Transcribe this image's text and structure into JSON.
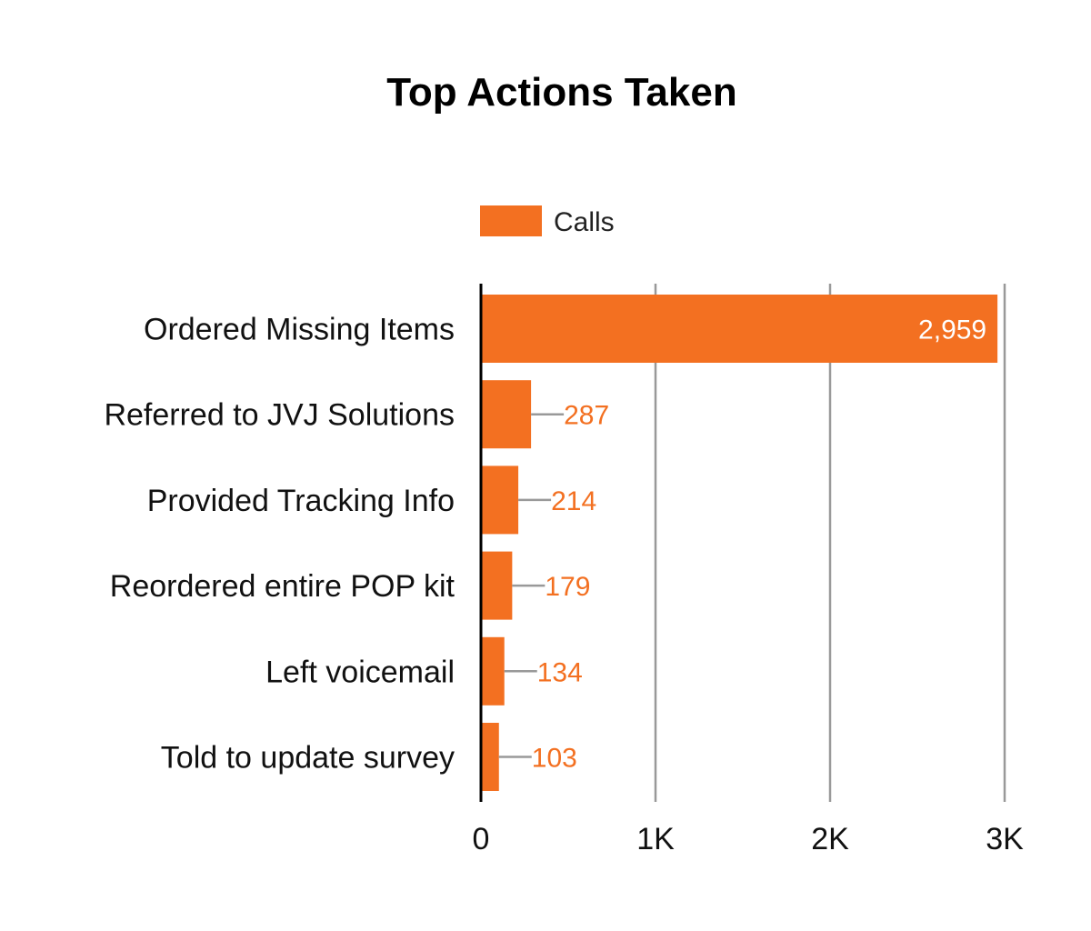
{
  "chart_data": {
    "type": "bar",
    "orientation": "horizontal",
    "title": "Top Actions Taken",
    "categories": [
      "Ordered Missing Items",
      "Referred to JVJ Solutions",
      "Provided Tracking Info",
      "Reordered entire POP kit",
      "Left voicemail",
      "Told to update survey"
    ],
    "series": [
      {
        "name": "Calls",
        "color": "#F37021",
        "values": [
          2959,
          287,
          214,
          179,
          134,
          103
        ],
        "labels": [
          "2,959",
          "287",
          "214",
          "179",
          "134",
          "103"
        ]
      }
    ],
    "xlim": [
      0,
      3000
    ],
    "ticks": [
      {
        "value": 0,
        "label": "0"
      },
      {
        "value": 1000,
        "label": "1K"
      },
      {
        "value": 2000,
        "label": "2K"
      },
      {
        "value": 3000,
        "label": "3K"
      }
    ],
    "legend_position": "top",
    "grid": true,
    "inside_label_color": "#FFFFFF",
    "gridline_color": "#999999"
  }
}
